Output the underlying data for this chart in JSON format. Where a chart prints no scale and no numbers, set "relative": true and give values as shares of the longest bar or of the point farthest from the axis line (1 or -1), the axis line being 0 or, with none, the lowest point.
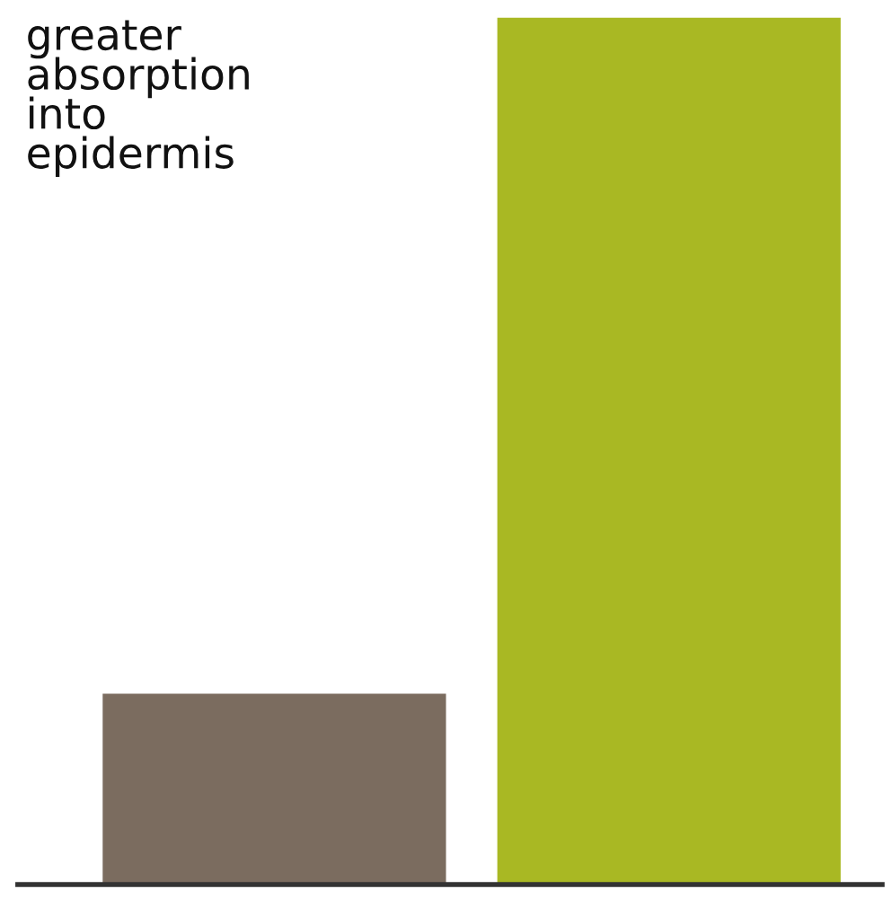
{
  "chart_data": {
    "type": "bar",
    "relative": true,
    "categories": [
      null,
      null
    ],
    "values": [
      0.22,
      1
    ],
    "colors": [
      "#7b6c5f",
      "#a9b823"
    ],
    "annotations": [
      "greater\nabsorption\ninto\nepidermis"
    ],
    "grid": false,
    "legend": false
  }
}
